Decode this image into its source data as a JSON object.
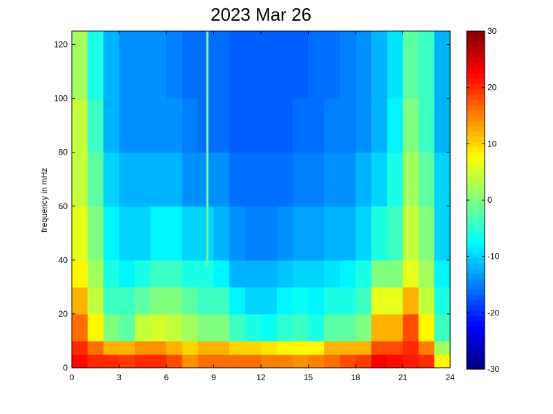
{
  "chart_data": {
    "type": "heatmap",
    "title": "2023 Mar 26",
    "xlabel": "",
    "ylabel": "frequency in mHz",
    "xlim": [
      0,
      24
    ],
    "ylim": [
      0,
      125
    ],
    "xticks": [
      0,
      3,
      6,
      9,
      12,
      15,
      18,
      21,
      24
    ],
    "yticks": [
      0,
      20,
      40,
      60,
      80,
      100,
      120
    ],
    "colorbar": {
      "limits": [
        -30,
        30
      ],
      "ticks": [
        30,
        20,
        10,
        0,
        -10,
        -20,
        -30
      ],
      "colormap": "jet"
    },
    "grid": false,
    "legend": "none",
    "x_bins": 24,
    "y_bins": [
      0,
      5,
      10,
      20,
      30,
      40,
      60,
      80,
      100,
      125
    ],
    "values": [
      [
        22,
        20,
        20,
        19,
        20,
        20,
        18,
        14,
        16,
        16,
        16,
        16,
        15,
        15,
        14,
        15,
        16,
        18,
        19,
        23,
        22,
        21,
        20,
        8
      ],
      [
        20,
        16,
        12,
        12,
        14,
        14,
        12,
        10,
        12,
        12,
        10,
        10,
        9,
        8,
        8,
        8,
        12,
        12,
        12,
        18,
        18,
        20,
        15,
        2
      ],
      [
        16,
        8,
        0,
        -2,
        4,
        5,
        4,
        2,
        0,
        0,
        -4,
        -6,
        -7,
        -5,
        -4,
        -6,
        -2,
        -2,
        0,
        12,
        12,
        18,
        8,
        -4
      ],
      [
        12,
        4,
        -4,
        -4,
        -2,
        0,
        0,
        -2,
        -4,
        -4,
        -8,
        -10,
        -10,
        -8,
        -7,
        -8,
        -6,
        -6,
        -4,
        6,
        6,
        12,
        4,
        -6
      ],
      [
        8,
        2,
        -6,
        -8,
        -6,
        -4,
        -4,
        -6,
        -6,
        -8,
        -12,
        -12,
        -12,
        -11,
        -10,
        -10,
        -9,
        -8,
        -6,
        0,
        0,
        6,
        2,
        -8
      ],
      [
        6,
        0,
        -8,
        -10,
        -10,
        -8,
        -8,
        -10,
        -10,
        -12,
        -14,
        -15,
        -15,
        -14,
        -13,
        -13,
        -12,
        -12,
        -10,
        -6,
        -4,
        4,
        0,
        -10
      ],
      [
        4,
        -2,
        -10,
        -12,
        -12,
        -12,
        -12,
        -14,
        -14,
        -14,
        -16,
        -16,
        -16,
        -16,
        -15,
        -15,
        -14,
        -14,
        -12,
        -10,
        -6,
        2,
        -2,
        -10
      ],
      [
        4,
        -4,
        -12,
        -14,
        -14,
        -14,
        -14,
        -15,
        -16,
        -16,
        -17,
        -17,
        -17,
        -17,
        -16,
        -16,
        -15,
        -15,
        -14,
        -12,
        -8,
        0,
        -4,
        -12
      ],
      [
        2,
        -6,
        -12,
        -14,
        -14,
        -14,
        -15,
        -16,
        -16,
        -16,
        -17,
        -17,
        -17,
        -17,
        -17,
        -16,
        -16,
        -15,
        -14,
        -12,
        -9,
        -2,
        -4,
        -12
      ]
    ],
    "annotations": [
      {
        "type": "vertical-line",
        "x": 8.6,
        "value": 0
      }
    ]
  }
}
